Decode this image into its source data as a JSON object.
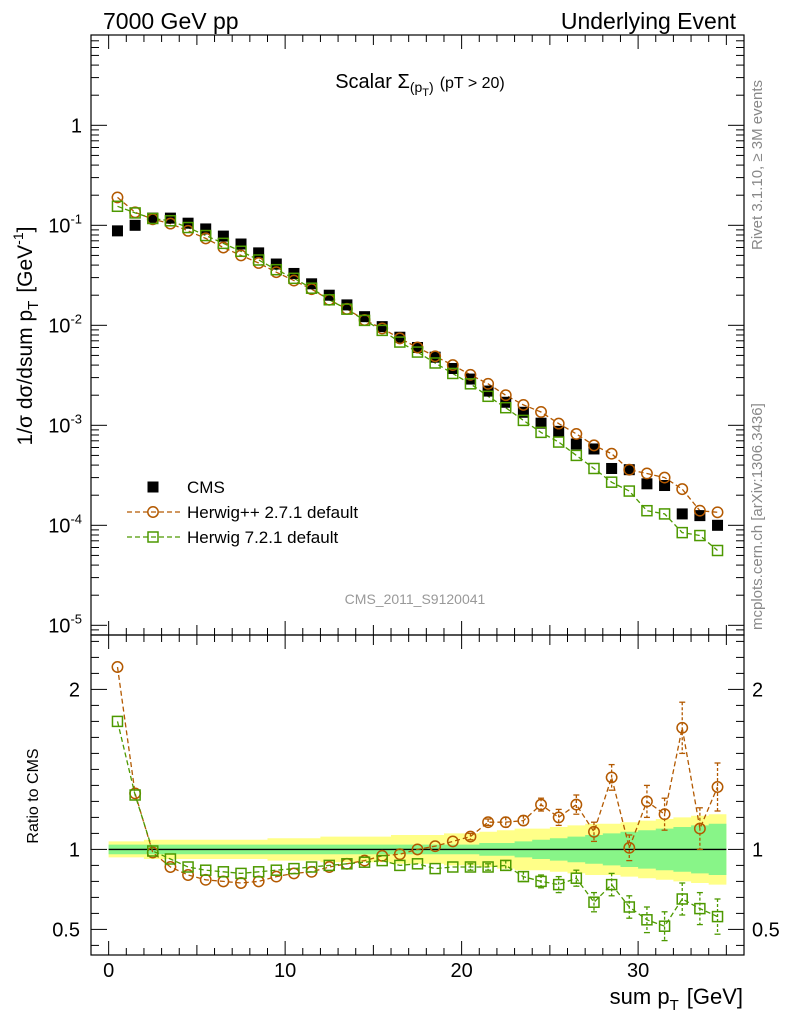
{
  "header": {
    "left": "7000 GeV pp",
    "right": "Underlying Event"
  },
  "side_labels": {
    "rivet": "Rivet 3.1.10, ≥ 3M events",
    "mcplots": "mcplots.cern.ch [arXiv:1306.3436]"
  },
  "chart_data": [
    {
      "type": "scatter",
      "title": {
        "main": "Scalar Σ",
        "sub": "(p",
        "sub_t": "T",
        "sub_close": ")",
        "cut": "(pT > 20)"
      },
      "watermark": "CMS_2011_S9120041",
      "ylabel": {
        "main": "1/σ dσ/dsum p",
        "sub": "T",
        "unit_open": "[GeV",
        "unit_sup": "-1",
        "unit_close": "]"
      },
      "yscale": "log",
      "ylim": [
        8e-06,
        8
      ],
      "xlim": [
        -1,
        36
      ],
      "ytick_labels": [
        {
          "value": 1,
          "base": "1",
          "exp": ""
        },
        {
          "value": 0.1,
          "base": "10",
          "exp": "-1"
        },
        {
          "value": 0.01,
          "base": "10",
          "exp": "-2"
        },
        {
          "value": 0.001,
          "base": "10",
          "exp": "-3"
        },
        {
          "value": 0.0001,
          "base": "10",
          "exp": "-4"
        },
        {
          "value": 1e-05,
          "base": "10",
          "exp": "-5"
        }
      ],
      "legend": {
        "placement": "lower-left",
        "entries": [
          {
            "label": "CMS",
            "color": "#000000",
            "marker": "square-filled",
            "line": "none"
          },
          {
            "label": "Herwig++ 2.7.1 default",
            "color": "#b35900",
            "marker": "circle-open",
            "line": "dashed"
          },
          {
            "label": "Herwig 7.2.1 default",
            "color": "#4d9900",
            "marker": "square-open",
            "line": "dashed"
          }
        ]
      },
      "x": [
        0.5,
        1.5,
        2.5,
        3.5,
        4.5,
        5.5,
        6.5,
        7.5,
        8.5,
        9.5,
        10.5,
        11.5,
        12.5,
        13.5,
        14.5,
        15.5,
        16.5,
        17.5,
        18.5,
        19.5,
        20.5,
        21.5,
        22.5,
        23.5,
        24.5,
        25.5,
        26.5,
        27.5,
        28.5,
        29.5,
        30.5,
        31.5,
        32.5,
        33.5,
        34.5
      ],
      "series": [
        {
          "name": "CMS",
          "values": [
            0.088,
            0.1,
            0.118,
            0.118,
            0.105,
            0.092,
            0.078,
            0.065,
            0.053,
            0.041,
            0.033,
            0.026,
            0.02,
            0.016,
            0.0122,
            0.0097,
            0.0076,
            0.006,
            0.0048,
            0.0037,
            0.0029,
            0.0022,
            0.0017,
            0.00135,
            0.00105,
            0.00087,
            0.00065,
            0.00058,
            0.00037,
            0.00036,
            0.00026,
            0.00025,
            0.00013,
            0.000125,
            0.0001
          ]
        },
        {
          "name": "Herwig++ 2.7.1 default",
          "values": [
            0.19,
            0.135,
            0.115,
            0.104,
            0.088,
            0.074,
            0.06,
            0.05,
            0.042,
            0.034,
            0.028,
            0.023,
            0.018,
            0.0146,
            0.0113,
            0.0093,
            0.0074,
            0.006,
            0.0049,
            0.004,
            0.0032,
            0.0026,
            0.002,
            0.0016,
            0.00136,
            0.00104,
            0.00082,
            0.00063,
            0.00052,
            0.00036,
            0.00033,
            0.0003,
            0.00023,
            0.00014,
            0.000135
          ]
        },
        {
          "name": "Herwig 7.2.1 default",
          "values": [
            0.155,
            0.133,
            0.117,
            0.111,
            0.095,
            0.079,
            0.066,
            0.055,
            0.045,
            0.036,
            0.0295,
            0.0235,
            0.018,
            0.0145,
            0.0112,
            0.0089,
            0.0068,
            0.0054,
            0.0042,
            0.0033,
            0.0026,
            0.00195,
            0.0015,
            0.00112,
            0.00085,
            0.00068,
            0.0005,
            0.00037,
            0.00027,
            0.00022,
            0.00014,
            0.00013,
            8.45e-05,
            7.9e-05,
            5.6e-05
          ]
        }
      ]
    },
    {
      "type": "line",
      "ylabel": "Ratio to CMS",
      "xlabel": {
        "main": "sum p",
        "sub": "T",
        "unit": "[GeV]"
      },
      "yscale": "linear",
      "ylim": [
        0.34,
        2.34
      ],
      "xlim": [
        -1,
        36
      ],
      "xtick_labels": [
        "0",
        "10",
        "20",
        "30"
      ],
      "xtick_values": [
        0,
        10,
        20,
        30
      ],
      "ytick_labels": [
        "2",
        "1",
        "0.5"
      ],
      "ytick_values": [
        2,
        1,
        0.5
      ],
      "reference_line": 1,
      "bands": {
        "stat_color": "#88f588",
        "total_color": "#ffff88",
        "stat_halfwidth": [
          0.03,
          0.03,
          0.03,
          0.03,
          0.03,
          0.03,
          0.03,
          0.03,
          0.03,
          0.03,
          0.03,
          0.03,
          0.03,
          0.03,
          0.03,
          0.03,
          0.03,
          0.03,
          0.03,
          0.03,
          0.03,
          0.04,
          0.04,
          0.05,
          0.06,
          0.07,
          0.08,
          0.09,
          0.1,
          0.11,
          0.12,
          0.13,
          0.14,
          0.15,
          0.16
        ],
        "total_halfwidth": [
          0.05,
          0.05,
          0.06,
          0.06,
          0.06,
          0.06,
          0.06,
          0.06,
          0.06,
          0.07,
          0.07,
          0.07,
          0.08,
          0.08,
          0.08,
          0.08,
          0.09,
          0.09,
          0.09,
          0.1,
          0.1,
          0.11,
          0.12,
          0.13,
          0.13,
          0.14,
          0.15,
          0.16,
          0.16,
          0.17,
          0.18,
          0.19,
          0.2,
          0.21,
          0.22
        ]
      },
      "series": [
        {
          "name": "Herwig++ 2.7.1 default",
          "values": [
            2.14,
            1.35,
            0.98,
            0.89,
            0.84,
            0.81,
            0.8,
            0.79,
            0.8,
            0.83,
            0.85,
            0.86,
            0.89,
            0.91,
            0.93,
            0.96,
            0.97,
            1.0,
            1.02,
            1.05,
            1.08,
            1.17,
            1.17,
            1.18,
            1.28,
            1.2,
            1.28,
            1.11,
            1.45,
            1.01,
            1.3,
            1.22,
            1.76,
            1.13,
            1.39
          ],
          "errors": [
            0.01,
            0.01,
            0.01,
            0.01,
            0.01,
            0.01,
            0.01,
            0.01,
            0.01,
            0.01,
            0.01,
            0.01,
            0.01,
            0.01,
            0.01,
            0.01,
            0.01,
            0.01,
            0.01,
            0.01,
            0.02,
            0.02,
            0.03,
            0.03,
            0.04,
            0.05,
            0.06,
            0.06,
            0.08,
            0.08,
            0.1,
            0.1,
            0.16,
            0.13,
            0.15
          ]
        },
        {
          "name": "Herwig 7.2.1 default",
          "values": [
            1.8,
            1.34,
            0.99,
            0.94,
            0.89,
            0.87,
            0.86,
            0.85,
            0.86,
            0.87,
            0.88,
            0.89,
            0.9,
            0.91,
            0.92,
            0.93,
            0.9,
            0.91,
            0.88,
            0.89,
            0.89,
            0.89,
            0.9,
            0.83,
            0.8,
            0.78,
            0.82,
            0.67,
            0.78,
            0.64,
            0.56,
            0.52,
            0.69,
            0.63,
            0.58
          ],
          "errors": [
            0.01,
            0.01,
            0.01,
            0.01,
            0.01,
            0.01,
            0.01,
            0.01,
            0.01,
            0.01,
            0.01,
            0.01,
            0.01,
            0.01,
            0.01,
            0.01,
            0.01,
            0.01,
            0.01,
            0.01,
            0.02,
            0.02,
            0.03,
            0.03,
            0.04,
            0.05,
            0.05,
            0.06,
            0.07,
            0.07,
            0.08,
            0.09,
            0.1,
            0.1,
            0.11
          ]
        }
      ]
    }
  ]
}
